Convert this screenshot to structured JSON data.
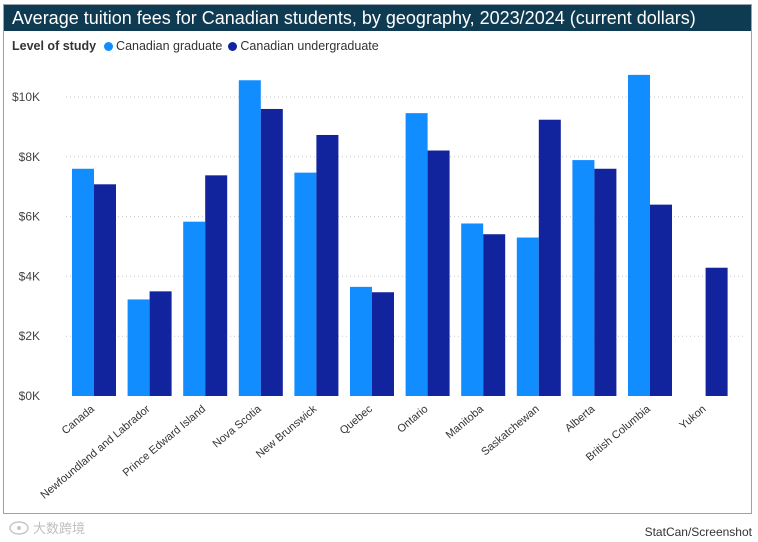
{
  "chart_data": {
    "type": "bar",
    "title": "Average tuition fees for Canadian students, by geography, 2023/2024 (current dollars)",
    "legend_title": "Level of study",
    "legend_position": "top-left",
    "categories": [
      "Canada",
      "Newfoundland and Labrador",
      "Prince Edward Island",
      "Nova Scotia",
      "New Brunswick",
      "Quebec",
      "Ontario",
      "Manitoba",
      "Saskatchewan",
      "Alberta",
      "British Columbia",
      "Yukon"
    ],
    "series": [
      {
        "name": "Canadian graduate",
        "color": "#118dff",
        "values": [
          7600,
          3230,
          5830,
          10560,
          7470,
          3650,
          9460,
          5770,
          5300,
          7890,
          10740,
          null
        ]
      },
      {
        "name": "Canadian undergraduate",
        "color": "#12239e",
        "values": [
          7080,
          3500,
          7380,
          9600,
          8730,
          3470,
          8210,
          5410,
          9240,
          7600,
          6400,
          4290
        ]
      }
    ],
    "y_ticks": [
      "$0K",
      "$2K",
      "$4K",
      "$6K",
      "$8K",
      "$10K"
    ],
    "ylim": [
      0,
      11000
    ],
    "grid": true,
    "source": "StatCan/Screenshot"
  },
  "watermark": {
    "text": "大数跨境",
    "icon": "logo-icon"
  }
}
